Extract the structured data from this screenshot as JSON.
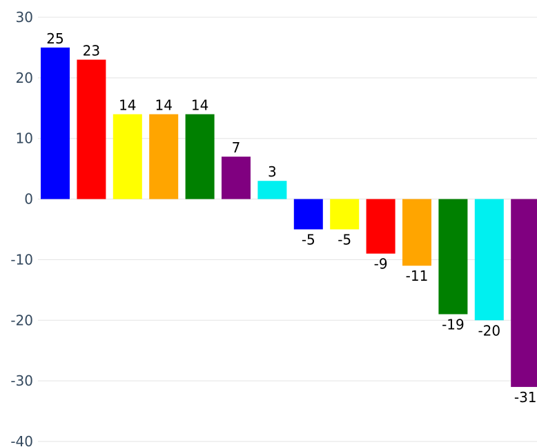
{
  "chart_data": {
    "type": "bar",
    "values": [
      25,
      23,
      14,
      14,
      14,
      7,
      3,
      -5,
      -5,
      -9,
      -11,
      -19,
      -20,
      -31
    ],
    "colors": [
      "#0000ff",
      "#ff0000",
      "#ffff00",
      "#ffa500",
      "#008000",
      "#800080",
      "#00f0f0",
      "#0000ff",
      "#ffff00",
      "#ff0000",
      "#ffa500",
      "#008000",
      "#00f0f0",
      "#800080"
    ],
    "ylim": [
      -40,
      30
    ],
    "yticks": [
      -40,
      -30,
      -20,
      -10,
      0,
      10,
      20,
      30
    ],
    "grid": true
  }
}
